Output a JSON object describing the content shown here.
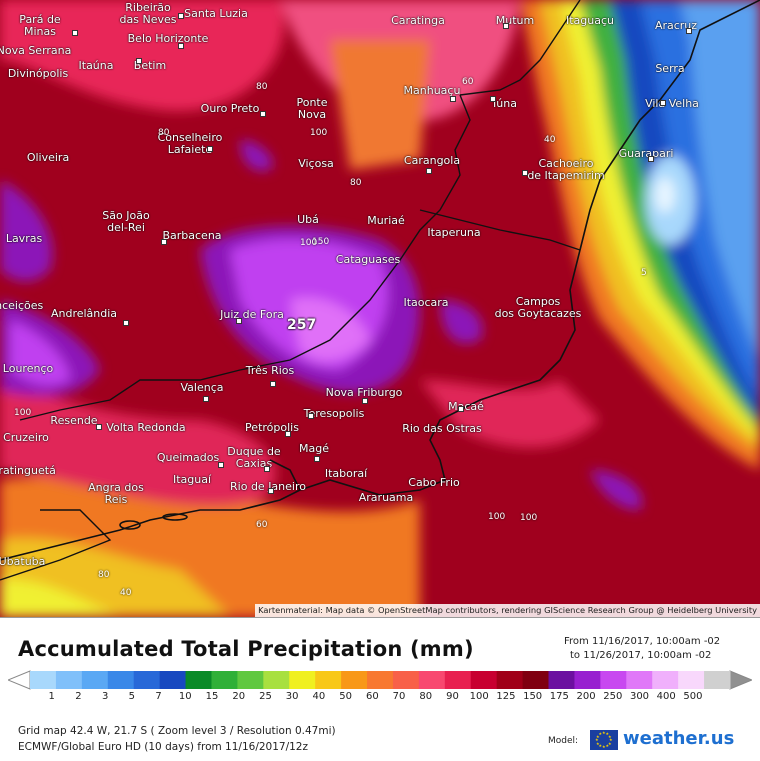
{
  "colors": {
    "ocean_blue": "#4a90e0",
    "deep_red": "#a0001e",
    "purple": "#8c18b8",
    "magenta": "#c83cf0",
    "pink": "#f04880",
    "orange": "#f07820",
    "yellow": "#f0e020",
    "green": "#28a040"
  },
  "map": {
    "max_value": "257",
    "attribution": "Kartenmaterial: Map data © OpenStreetMap contributors, rendering GIScience Research Group @ Heidelberg University",
    "cities": [
      {
        "name": "Pará de\nMinas"
      },
      {
        "name": "Ribeirão\ndas Neves"
      },
      {
        "name": "Santa Luzia"
      },
      {
        "name": "Caratinga"
      },
      {
        "name": "Mutum"
      },
      {
        "name": "Itaguaçu"
      },
      {
        "name": "Aracruz"
      },
      {
        "name": "Nova Serrana"
      },
      {
        "name": "Belo Horizonte"
      },
      {
        "name": "Serra"
      },
      {
        "name": "Divinópolis"
      },
      {
        "name": "Itaúna"
      },
      {
        "name": "Betim"
      },
      {
        "name": "Manhuaçu"
      },
      {
        "name": "Vila Velha"
      },
      {
        "name": "Ponte\nNova"
      },
      {
        "name": "Iúna"
      },
      {
        "name": "Ouro Preto"
      },
      {
        "name": "Conselheiro\nLafaiete"
      },
      {
        "name": "Guarapari"
      },
      {
        "name": "Oliveira"
      },
      {
        "name": "Viçosa"
      },
      {
        "name": "Carangola"
      },
      {
        "name": "Cachoeiro\nde Itapemirim"
      },
      {
        "name": "São João\ndel-Rei"
      },
      {
        "name": "Ubá"
      },
      {
        "name": "Muriaé"
      },
      {
        "name": "Lavras"
      },
      {
        "name": "Barbacena"
      },
      {
        "name": "Itaperuna"
      },
      {
        "name": "Cataguases"
      },
      {
        "name": "Campos\ndos Goytacazes"
      },
      {
        "name": "Andrelândia"
      },
      {
        "name": "Juiz de Fora"
      },
      {
        "name": "Itaocara"
      },
      {
        "name": "Conceições"
      },
      {
        "name": "Lourenço"
      },
      {
        "name": "Três Rios"
      },
      {
        "name": "Valença"
      },
      {
        "name": "Nova Friburgo"
      },
      {
        "name": "Macaé"
      },
      {
        "name": "Resende"
      },
      {
        "name": "Volta Redonda"
      },
      {
        "name": "Teresopolis"
      },
      {
        "name": "Cruzeiro"
      },
      {
        "name": "Petrópolis"
      },
      {
        "name": "Rio das Ostras"
      },
      {
        "name": "Queimados"
      },
      {
        "name": "Duque de\nCaxias"
      },
      {
        "name": "Magé"
      },
      {
        "name": "Guaratinguetá"
      },
      {
        "name": "Itaguaí"
      },
      {
        "name": "Itaboraí"
      },
      {
        "name": "Rio de Janeiro"
      },
      {
        "name": "Cabo Frio"
      },
      {
        "name": "Angra dos\nReis"
      },
      {
        "name": "Araruama"
      },
      {
        "name": "Ubatuba"
      }
    ],
    "contour_labels": [
      "80",
      "80",
      "100",
      "80",
      "60",
      "40",
      "100",
      "100",
      "150",
      "5",
      "100",
      "100",
      "80",
      "60",
      "40"
    ]
  },
  "legend": {
    "title": "Accumulated Total Precipitation (mm)",
    "from": "From 11/16/2017, 10:00am -02",
    "to": "to 11/26/2017, 10:00am -02",
    "ticks": [
      "1",
      "2",
      "3",
      "5",
      "7",
      "10",
      "15",
      "20",
      "25",
      "30",
      "40",
      "50",
      "60",
      "70",
      "80",
      "90",
      "100",
      "125",
      "150",
      "175",
      "200",
      "250",
      "300",
      "400",
      "500"
    ],
    "colors": [
      "#a8d8fc",
      "#80c0fa",
      "#5aa8f4",
      "#3a88e8",
      "#2868d8",
      "#1848c0",
      "#0a8a28",
      "#30b038",
      "#60c840",
      "#a8e040",
      "#f0f020",
      "#f8c818",
      "#f89818",
      "#f87830",
      "#f86048",
      "#f84870",
      "#e82050",
      "#c80030",
      "#a00018",
      "#800010",
      "#6c10a0",
      "#9820d0",
      "#c848f0",
      "#e078f8",
      "#f0b0fc",
      "#f8d8fc",
      "#d0d0d0"
    ],
    "grid_info": "Grid map 42.4 W, 21.7 S ( Zoom level 3 / Resolution 0.47mi)",
    "model_info": "ECMWF/Global Euro HD (10 days) from 11/16/2017/12z",
    "model_label": "Model:",
    "brand": "weather.us"
  }
}
